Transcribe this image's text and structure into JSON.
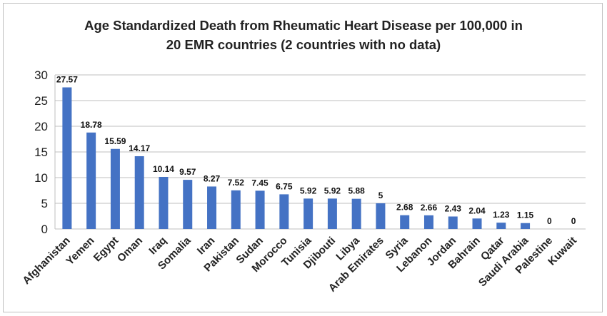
{
  "chart_data": {
    "type": "bar",
    "title_line1": "Age Standardized Death from Rheumatic Heart Disease per 100,000 in",
    "title_line2": "20 EMR countries (2 countries with no data)",
    "categories": [
      "Afghanistan",
      "Yemen",
      "Egypt",
      "Oman",
      "Iraq",
      "Somalia",
      "Iran",
      "Pakistan",
      "Sudan",
      "Morocco",
      "Tunisia",
      "Djibouti",
      "Libya",
      "Arab Emirates",
      "Syria",
      "Lebanon",
      "Jordan",
      "Bahrain",
      "Qatar",
      "Saudi Arabia",
      "Palestine",
      "Kuwait"
    ],
    "values": [
      27.57,
      18.78,
      15.59,
      14.17,
      10.14,
      9.57,
      8.27,
      7.52,
      7.45,
      6.75,
      5.92,
      5.92,
      5.88,
      5,
      2.68,
      2.66,
      2.43,
      2.04,
      1.23,
      1.15,
      0,
      0
    ],
    "ylim": [
      0,
      30
    ],
    "yticks": [
      0,
      5,
      10,
      15,
      20,
      25,
      30
    ],
    "xlabel": "",
    "ylabel": "",
    "grid": true,
    "legend": "none",
    "bar_color": "#4472C4"
  }
}
